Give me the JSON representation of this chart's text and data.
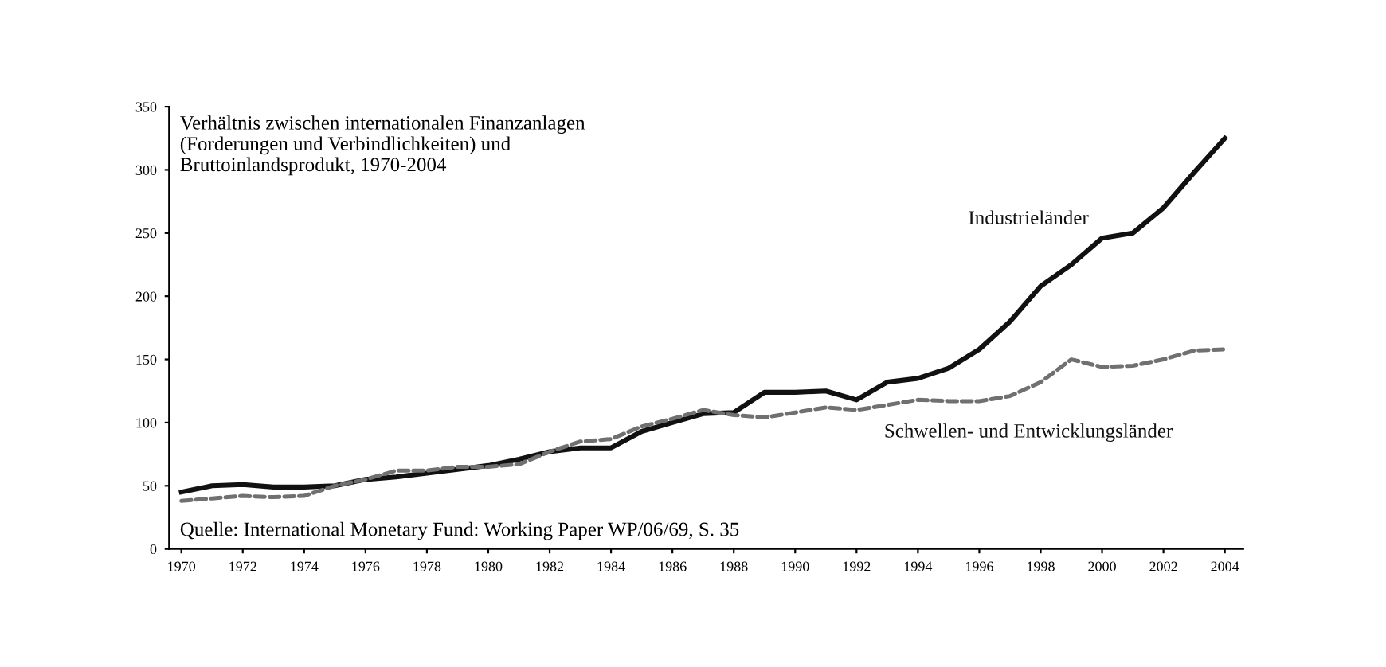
{
  "chart_data": {
    "type": "line",
    "title": "Verhältnis zwischen internationalen Finanzanlagen\n(Forderungen und Verbindlichkeiten) und\nBruttoinlandsprodukt, 1970-2004",
    "x": [
      1970,
      1971,
      1972,
      1973,
      1974,
      1975,
      1976,
      1977,
      1978,
      1979,
      1980,
      1981,
      1982,
      1983,
      1984,
      1985,
      1986,
      1987,
      1988,
      1989,
      1990,
      1991,
      1992,
      1993,
      1994,
      1995,
      1996,
      1997,
      1998,
      1999,
      2000,
      2001,
      2002,
      2003,
      2004
    ],
    "series": [
      {
        "name": "Industrieländer",
        "color": "#111111",
        "line_style": "solid",
        "values": [
          45,
          50,
          51,
          49,
          49,
          50,
          55,
          57,
          60,
          63,
          66,
          71,
          77,
          80,
          80,
          93,
          100,
          107,
          108,
          124,
          124,
          125,
          118,
          132,
          135,
          143,
          158,
          180,
          208,
          225,
          246,
          250,
          270,
          298,
          325
        ]
      },
      {
        "name": "Schwellen- und Entwicklungsländer",
        "color": "#707070",
        "line_style": "dashed",
        "values": [
          38,
          40,
          42,
          41,
          42,
          50,
          55,
          62,
          62,
          65,
          65,
          67,
          77,
          85,
          87,
          97,
          103,
          110,
          106,
          104,
          108,
          112,
          110,
          114,
          118,
          117,
          117,
          121,
          132,
          150,
          144,
          145,
          150,
          157,
          158
        ]
      }
    ],
    "annotations": [
      "Quelle: International Monetary Fund: Working Paper WP/06/69, S. 35"
    ],
    "xlim": [
      1969.6,
      2004.6
    ],
    "ylim": [
      0,
      350
    ],
    "xticks": [
      1970,
      1972,
      1974,
      1976,
      1978,
      1980,
      1982,
      1984,
      1986,
      1988,
      1990,
      1992,
      1994,
      1996,
      1998,
      2000,
      2002,
      2004
    ],
    "yticks": [
      0,
      50,
      100,
      150,
      200,
      250,
      300,
      350
    ],
    "grid": false,
    "legend": false
  }
}
